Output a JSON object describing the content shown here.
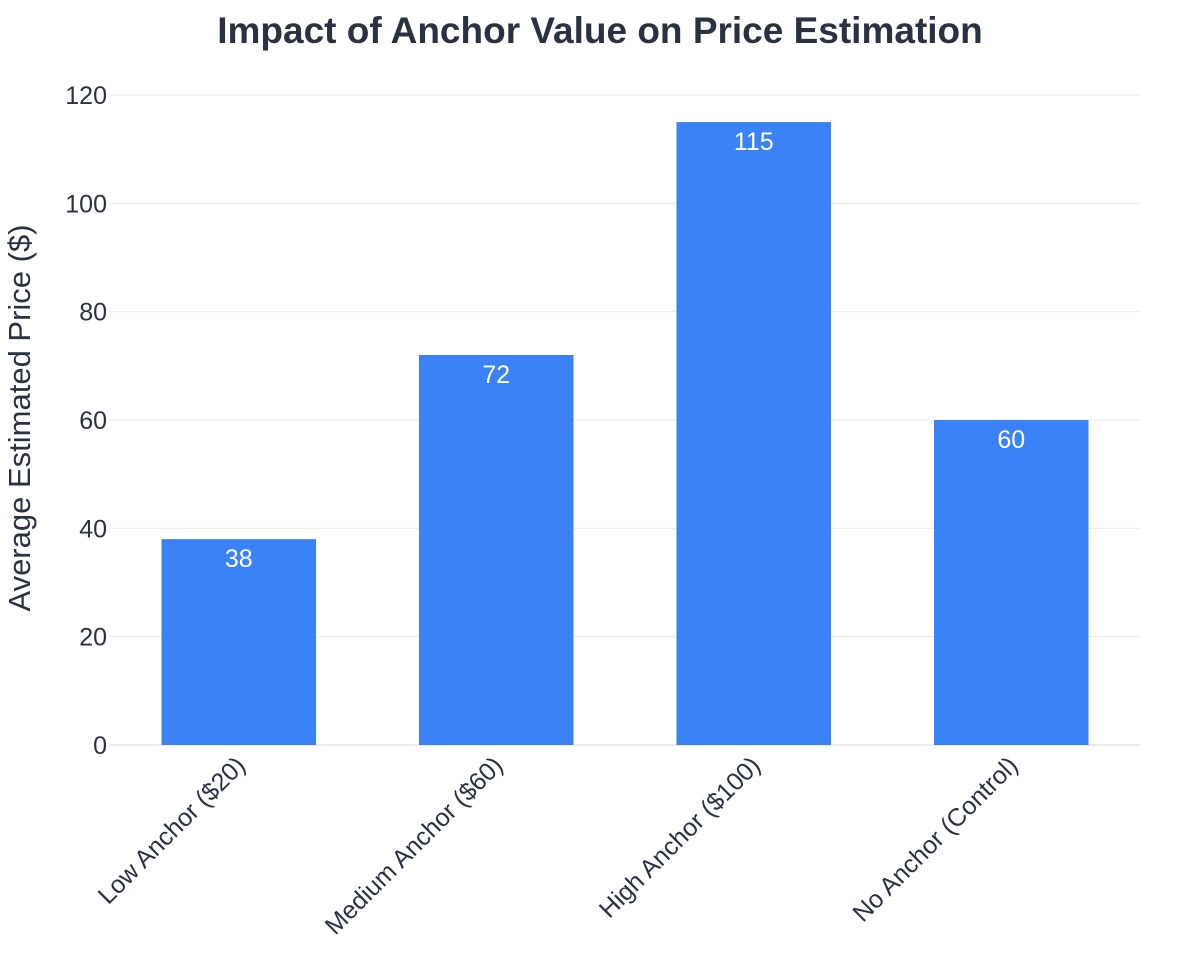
{
  "chart_data": {
    "type": "bar",
    "title": "Impact of Anchor Value on Price Estimation",
    "xlabel": "",
    "ylabel": "Average Estimated Price ($)",
    "categories": [
      "Low Anchor ($20)",
      "Medium Anchor ($60)",
      "High Anchor ($100)",
      "No Anchor (Control)"
    ],
    "values": [
      38,
      72,
      115,
      60
    ],
    "data_labels": [
      "38",
      "72",
      "115",
      "60"
    ],
    "ylim": [
      0,
      120
    ],
    "yticks": [
      0,
      20,
      40,
      60,
      80,
      100,
      120
    ],
    "ytick_labels": [
      "0",
      "20",
      "40",
      "60",
      "80",
      "100",
      "120"
    ],
    "grid": true,
    "legend": "none",
    "colors": {
      "bar": "#3b82f6",
      "text": "#2a3242",
      "grid": "#e8ebf0",
      "bar_label": "#ffffff"
    }
  }
}
